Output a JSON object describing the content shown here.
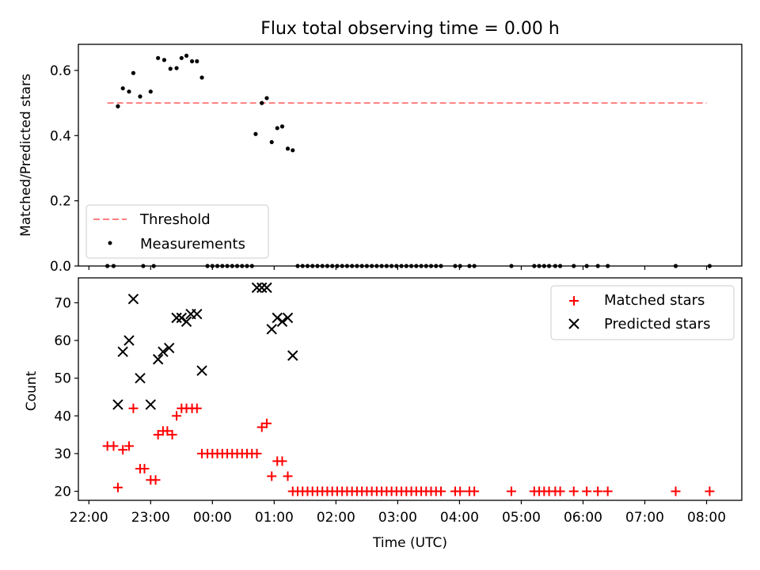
{
  "figure": {
    "title": "Flux total observing time = 0.00 h"
  },
  "chart_data": [
    {
      "type": "scatter",
      "panel": "top",
      "title": "Flux total observing time = 0.00 h",
      "xlabel": "",
      "ylabel": "Matched/Predicted stars",
      "xlim": [
        21.83,
        32.57
      ],
      "ylim": [
        0,
        0.68
      ],
      "x_tick_values": [
        22,
        23,
        24,
        25,
        26,
        27,
        28,
        29,
        30,
        31,
        32
      ],
      "y_ticks": [
        "0.0",
        "0.2",
        "0.4",
        "0.6"
      ],
      "y_tick_values": [
        0.0,
        0.2,
        0.4,
        0.6
      ],
      "grid": false,
      "legend": {
        "position": "lower-left",
        "entries": [
          "Threshold",
          "Measurements"
        ]
      },
      "series": [
        {
          "name": "Threshold",
          "style": "dashed-line",
          "color": "#ff7f7f",
          "points": [
            [
              22.3,
              0.5
            ],
            [
              32.0,
              0.5
            ]
          ]
        },
        {
          "name": "Measurements",
          "style": "dot",
          "color": "#000000",
          "points": [
            [
              22.3,
              0.0
            ],
            [
              22.4,
              0.0
            ],
            [
              22.47,
              0.49
            ],
            [
              22.55,
              0.545
            ],
            [
              22.65,
              0.535
            ],
            [
              22.72,
              0.592
            ],
            [
              22.83,
              0.52
            ],
            [
              22.88,
              0.0
            ],
            [
              23.0,
              0.535
            ],
            [
              23.05,
              0.0
            ],
            [
              23.12,
              0.638
            ],
            [
              23.22,
              0.632
            ],
            [
              23.32,
              0.605
            ],
            [
              23.42,
              0.607
            ],
            [
              23.5,
              0.638
            ],
            [
              23.58,
              0.645
            ],
            [
              23.67,
              0.628
            ],
            [
              23.75,
              0.628
            ],
            [
              23.83,
              0.578
            ],
            [
              23.92,
              0.0
            ],
            [
              24.0,
              0.0
            ],
            [
              24.08,
              0.0
            ],
            [
              24.16,
              0.0
            ],
            [
              24.24,
              0.0
            ],
            [
              24.32,
              0.0
            ],
            [
              24.4,
              0.0
            ],
            [
              24.48,
              0.0
            ],
            [
              24.56,
              0.0
            ],
            [
              24.64,
              0.0
            ],
            [
              24.7,
              0.405
            ],
            [
              24.8,
              0.5
            ],
            [
              24.88,
              0.515
            ],
            [
              24.96,
              0.38
            ],
            [
              25.05,
              0.423
            ],
            [
              25.13,
              0.428
            ],
            [
              25.22,
              0.36
            ],
            [
              25.3,
              0.355
            ],
            [
              25.38,
              0.0
            ],
            [
              25.46,
              0.0
            ],
            [
              25.54,
              0.0
            ],
            [
              25.62,
              0.0
            ],
            [
              25.7,
              0.0
            ],
            [
              25.78,
              0.0
            ],
            [
              25.86,
              0.0
            ],
            [
              25.94,
              0.0
            ],
            [
              26.02,
              0.0
            ],
            [
              26.1,
              0.0
            ],
            [
              26.18,
              0.0
            ],
            [
              26.26,
              0.0
            ],
            [
              26.34,
              0.0
            ],
            [
              26.42,
              0.0
            ],
            [
              26.5,
              0.0
            ],
            [
              26.58,
              0.0
            ],
            [
              26.66,
              0.0
            ],
            [
              26.74,
              0.0
            ],
            [
              26.82,
              0.0
            ],
            [
              26.9,
              0.0
            ],
            [
              26.98,
              0.0
            ],
            [
              27.06,
              0.0
            ],
            [
              27.14,
              0.0
            ],
            [
              27.22,
              0.0
            ],
            [
              27.3,
              0.0
            ],
            [
              27.38,
              0.0
            ],
            [
              27.46,
              0.0
            ],
            [
              27.54,
              0.0
            ],
            [
              27.62,
              0.0
            ],
            [
              27.7,
              0.0
            ],
            [
              27.93,
              0.0
            ],
            [
              28.01,
              0.0
            ],
            [
              28.16,
              0.0
            ],
            [
              28.24,
              0.0
            ],
            [
              28.84,
              0.0
            ],
            [
              29.21,
              0.0
            ],
            [
              29.29,
              0.0
            ],
            [
              29.37,
              0.0
            ],
            [
              29.45,
              0.0
            ],
            [
              29.55,
              0.0
            ],
            [
              29.63,
              0.0
            ],
            [
              29.85,
              0.0
            ],
            [
              30.06,
              0.0
            ],
            [
              30.24,
              0.0
            ],
            [
              30.4,
              0.0
            ],
            [
              31.5,
              0.0
            ],
            [
              32.05,
              0.0
            ]
          ]
        }
      ]
    },
    {
      "type": "scatter",
      "panel": "bottom",
      "xlabel": "Time (UTC)",
      "ylabel": "Count",
      "xlim": [
        21.83,
        32.57
      ],
      "ylim": [
        17.6,
        76.6
      ],
      "x_ticks": [
        "22:00",
        "23:00",
        "00:00",
        "01:00",
        "02:00",
        "03:00",
        "04:00",
        "05:00",
        "06:00",
        "07:00",
        "08:00"
      ],
      "x_tick_values": [
        22,
        23,
        24,
        25,
        26,
        27,
        28,
        29,
        30,
        31,
        32
      ],
      "y_ticks": [
        "20",
        "30",
        "40",
        "50",
        "60",
        "70"
      ],
      "y_tick_values": [
        20,
        30,
        40,
        50,
        60,
        70
      ],
      "grid": false,
      "legend": {
        "position": "upper-right",
        "entries": [
          "Matched stars",
          "Predicted stars"
        ]
      },
      "series": [
        {
          "name": "Matched stars",
          "marker": "+",
          "color": "#ff0000",
          "points": [
            [
              22.3,
              32
            ],
            [
              22.4,
              32
            ],
            [
              22.47,
              21
            ],
            [
              22.55,
              31
            ],
            [
              22.65,
              32
            ],
            [
              22.72,
              42
            ],
            [
              22.83,
              26
            ],
            [
              22.9,
              26
            ],
            [
              23.0,
              23
            ],
            [
              23.08,
              23
            ],
            [
              23.12,
              35
            ],
            [
              23.2,
              36
            ],
            [
              23.27,
              36
            ],
            [
              23.35,
              35
            ],
            [
              23.42,
              40
            ],
            [
              23.5,
              42
            ],
            [
              23.58,
              42
            ],
            [
              23.67,
              42
            ],
            [
              23.75,
              42
            ],
            [
              23.83,
              30
            ],
            [
              23.92,
              30
            ],
            [
              24.0,
              30
            ],
            [
              24.08,
              30
            ],
            [
              24.16,
              30
            ],
            [
              24.24,
              30
            ],
            [
              24.32,
              30
            ],
            [
              24.4,
              30
            ],
            [
              24.48,
              30
            ],
            [
              24.56,
              30
            ],
            [
              24.64,
              30
            ],
            [
              24.72,
              30
            ],
            [
              24.8,
              37
            ],
            [
              24.88,
              38
            ],
            [
              24.96,
              24
            ],
            [
              25.05,
              28
            ],
            [
              25.13,
              28
            ],
            [
              25.22,
              24
            ],
            [
              25.3,
              20
            ],
            [
              25.38,
              20
            ],
            [
              25.46,
              20
            ],
            [
              25.54,
              20
            ],
            [
              25.62,
              20
            ],
            [
              25.7,
              20
            ],
            [
              25.78,
              20
            ],
            [
              25.86,
              20
            ],
            [
              25.94,
              20
            ],
            [
              26.02,
              20
            ],
            [
              26.1,
              20
            ],
            [
              26.18,
              20
            ],
            [
              26.26,
              20
            ],
            [
              26.34,
              20
            ],
            [
              26.42,
              20
            ],
            [
              26.5,
              20
            ],
            [
              26.58,
              20
            ],
            [
              26.66,
              20
            ],
            [
              26.74,
              20
            ],
            [
              26.82,
              20
            ],
            [
              26.9,
              20
            ],
            [
              26.98,
              20
            ],
            [
              27.06,
              20
            ],
            [
              27.14,
              20
            ],
            [
              27.22,
              20
            ],
            [
              27.3,
              20
            ],
            [
              27.38,
              20
            ],
            [
              27.46,
              20
            ],
            [
              27.54,
              20
            ],
            [
              27.62,
              20
            ],
            [
              27.7,
              20
            ],
            [
              27.93,
              20
            ],
            [
              28.01,
              20
            ],
            [
              28.16,
              20
            ],
            [
              28.24,
              20
            ],
            [
              28.84,
              20
            ],
            [
              29.21,
              20
            ],
            [
              29.29,
              20
            ],
            [
              29.37,
              20
            ],
            [
              29.45,
              20
            ],
            [
              29.55,
              20
            ],
            [
              29.63,
              20
            ],
            [
              29.85,
              20
            ],
            [
              30.06,
              20
            ],
            [
              30.24,
              20
            ],
            [
              30.4,
              20
            ],
            [
              31.5,
              20
            ],
            [
              32.05,
              20
            ]
          ]
        },
        {
          "name": "Predicted stars",
          "marker": "x",
          "color": "#000000",
          "points": [
            [
              22.47,
              43
            ],
            [
              22.55,
              57
            ],
            [
              22.65,
              60
            ],
            [
              22.72,
              71
            ],
            [
              22.83,
              50
            ],
            [
              23.0,
              43
            ],
            [
              23.12,
              55
            ],
            [
              23.2,
              57
            ],
            [
              23.3,
              58
            ],
            [
              23.42,
              66
            ],
            [
              23.5,
              66
            ],
            [
              23.58,
              65
            ],
            [
              23.65,
              67
            ],
            [
              23.75,
              67
            ],
            [
              23.83,
              52
            ],
            [
              24.72,
              74
            ],
            [
              24.8,
              74
            ],
            [
              24.88,
              74
            ],
            [
              24.96,
              63
            ],
            [
              25.05,
              66
            ],
            [
              25.13,
              65
            ],
            [
              25.22,
              66
            ],
            [
              25.3,
              56
            ]
          ]
        }
      ]
    }
  ]
}
